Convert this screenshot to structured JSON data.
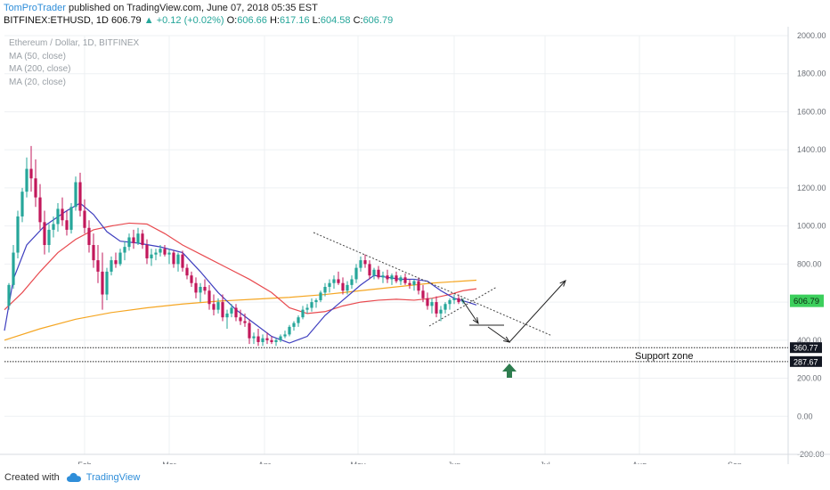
{
  "header": {
    "author": "TomProTrader",
    "published_text": "published on TradingView.com, June 07, 2018 05:35 EST",
    "symbol": "BITFINEX:ETHUSD, 1D",
    "last": "606.79",
    "change": "▲ +0.12 (+0.02%)",
    "o_label": "O:",
    "o_value": "606.66",
    "h_label": "H:",
    "h_value": "617.16",
    "l_label": "L:",
    "l_value": "604.58",
    "c_label": "C:",
    "c_value": "606.79"
  },
  "legend": {
    "title": "Ethereum / Dollar, 1D, BITFINEX",
    "ma50": "MA (50, close)",
    "ma200": "MA (200, close)",
    "ma20": "MA (20, close)"
  },
  "footer": {
    "created_with": "Created with",
    "brand": "TradingView"
  },
  "colors": {
    "up": "#26a69a",
    "down": "#c2185b",
    "ma50": "#e84a4f",
    "ma200": "#f5a623",
    "ma20": "#3f3fbf",
    "grid": "#eef0f3",
    "axis_text": "#6b6f76",
    "price_tag": "#3ccf5c",
    "arrow_green": "#2e7d4f"
  },
  "chart_data": {
    "type": "candlestick",
    "y_axis": {
      "min": -200,
      "max": 2000,
      "ticks": [
        2000,
        1800,
        1600,
        1400,
        1200,
        1000,
        800,
        600,
        400,
        200,
        0,
        -200
      ],
      "tick_labels": [
        "2000.00",
        "1800.00",
        "1600.00",
        "1400.00",
        "1200.00",
        "1000.00",
        "800.00",
        "600.00",
        "400.00",
        "200.00",
        "0.00",
        "-200.00"
      ]
    },
    "x_axis": {
      "tick_labels": [
        "Feb",
        "Mar",
        "Apr",
        "May",
        "Jun",
        "Jul",
        "Aug",
        "Sep"
      ]
    },
    "last_price": 606.79,
    "last_price_label": "606.79",
    "levels": [
      {
        "value": 360.77,
        "label": "360.77"
      },
      {
        "value": 287.67,
        "label": "287.67"
      }
    ],
    "annotations": {
      "support_zone": "Support zone"
    },
    "ma_series": {
      "ma20": [
        [
          0,
          450
        ],
        [
          10,
          720
        ],
        [
          25,
          900
        ],
        [
          45,
          1000
        ],
        [
          70,
          1080
        ],
        [
          85,
          1120
        ],
        [
          100,
          1060
        ],
        [
          115,
          970
        ],
        [
          130,
          920
        ],
        [
          150,
          910
        ],
        [
          175,
          890
        ],
        [
          200,
          860
        ],
        [
          220,
          760
        ],
        [
          240,
          650
        ],
        [
          260,
          560
        ],
        [
          280,
          490
        ],
        [
          300,
          420
        ],
        [
          320,
          385
        ],
        [
          340,
          420
        ],
        [
          360,
          530
        ],
        [
          380,
          610
        ],
        [
          400,
          690
        ],
        [
          415,
          740
        ],
        [
          430,
          730
        ],
        [
          445,
          720
        ],
        [
          460,
          720
        ],
        [
          475,
          710
        ],
        [
          490,
          660
        ],
        [
          505,
          620
        ],
        [
          520,
          600
        ],
        [
          530,
          585
        ]
      ],
      "ma50": [
        [
          0,
          560
        ],
        [
          20,
          650
        ],
        [
          40,
          760
        ],
        [
          60,
          860
        ],
        [
          80,
          930
        ],
        [
          100,
          980
        ],
        [
          120,
          1000
        ],
        [
          140,
          1015
        ],
        [
          160,
          1010
        ],
        [
          180,
          960
        ],
        [
          200,
          900
        ],
        [
          225,
          840
        ],
        [
          250,
          780
        ],
        [
          275,
          720
        ],
        [
          300,
          650
        ],
        [
          320,
          570
        ],
        [
          340,
          540
        ],
        [
          360,
          550
        ],
        [
          380,
          580
        ],
        [
          400,
          600
        ],
        [
          420,
          610
        ],
        [
          440,
          615
        ],
        [
          460,
          610
        ],
        [
          480,
          620
        ],
        [
          500,
          640
        ],
        [
          515,
          660
        ],
        [
          530,
          670
        ]
      ],
      "ma200": [
        [
          0,
          400
        ],
        [
          40,
          460
        ],
        [
          80,
          510
        ],
        [
          120,
          545
        ],
        [
          160,
          570
        ],
        [
          200,
          590
        ],
        [
          240,
          605
        ],
        [
          280,
          615
        ],
        [
          320,
          625
        ],
        [
          360,
          640
        ],
        [
          400,
          660
        ],
        [
          440,
          680
        ],
        [
          480,
          700
        ],
        [
          530,
          715
        ]
      ]
    },
    "candles": [
      [
        5,
        580,
        700,
        560,
        690
      ],
      [
        10,
        690,
        900,
        670,
        860
      ],
      [
        15,
        860,
        1080,
        830,
        1050
      ],
      [
        20,
        1050,
        1200,
        1020,
        1180
      ],
      [
        25,
        1180,
        1360,
        1150,
        1300
      ],
      [
        30,
        1300,
        1420,
        1180,
        1250
      ],
      [
        35,
        1250,
        1350,
        1100,
        1150
      ],
      [
        40,
        1150,
        1220,
        980,
        1020
      ],
      [
        45,
        1020,
        1080,
        850,
        900
      ],
      [
        50,
        900,
        1010,
        860,
        980
      ],
      [
        55,
        980,
        1050,
        940,
        1010
      ],
      [
        60,
        1010,
        1120,
        970,
        1090
      ],
      [
        65,
        1090,
        1150,
        1000,
        1030
      ],
      [
        70,
        1030,
        1080,
        950,
        980
      ],
      [
        75,
        980,
        1120,
        960,
        1100
      ],
      [
        80,
        1100,
        1260,
        1080,
        1230
      ],
      [
        85,
        1230,
        1280,
        1050,
        1080
      ],
      [
        90,
        1080,
        1140,
        960,
        990
      ],
      [
        95,
        990,
        1030,
        860,
        900
      ],
      [
        100,
        900,
        960,
        780,
        820
      ],
      [
        105,
        820,
        900,
        700,
        760
      ],
      [
        110,
        760,
        860,
        560,
        640
      ],
      [
        115,
        640,
        780,
        610,
        760
      ],
      [
        120,
        760,
        840,
        740,
        820
      ],
      [
        125,
        820,
        860,
        780,
        800
      ],
      [
        130,
        800,
        880,
        790,
        860
      ],
      [
        135,
        860,
        920,
        820,
        890
      ],
      [
        140,
        890,
        960,
        870,
        940
      ],
      [
        145,
        940,
        980,
        880,
        910
      ],
      [
        150,
        910,
        990,
        900,
        960
      ],
      [
        155,
        960,
        980,
        880,
        900
      ],
      [
        160,
        900,
        930,
        800,
        830
      ],
      [
        165,
        830,
        880,
        790,
        850
      ],
      [
        170,
        850,
        880,
        820,
        860
      ],
      [
        175,
        860,
        900,
        840,
        880
      ],
      [
        180,
        880,
        900,
        840,
        850
      ],
      [
        185,
        850,
        880,
        800,
        860
      ],
      [
        190,
        860,
        870,
        780,
        800
      ],
      [
        195,
        800,
        860,
        760,
        850
      ],
      [
        200,
        850,
        870,
        760,
        780
      ],
      [
        205,
        780,
        800,
        720,
        740
      ],
      [
        210,
        740,
        760,
        680,
        700
      ],
      [
        215,
        700,
        730,
        620,
        650
      ],
      [
        220,
        650,
        700,
        600,
        680
      ],
      [
        225,
        680,
        720,
        640,
        660
      ],
      [
        230,
        660,
        690,
        560,
        590
      ],
      [
        235,
        590,
        640,
        530,
        560
      ],
      [
        240,
        560,
        620,
        540,
        600
      ],
      [
        245,
        600,
        640,
        500,
        520
      ],
      [
        250,
        520,
        560,
        460,
        540
      ],
      [
        255,
        540,
        590,
        520,
        570
      ],
      [
        260,
        570,
        590,
        500,
        520
      ],
      [
        265,
        520,
        560,
        480,
        500
      ],
      [
        270,
        500,
        540,
        470,
        490
      ],
      [
        275,
        490,
        510,
        380,
        410
      ],
      [
        280,
        410,
        440,
        380,
        420
      ],
      [
        285,
        420,
        460,
        370,
        390
      ],
      [
        290,
        390,
        430,
        370,
        410
      ],
      [
        295,
        410,
        440,
        380,
        400
      ],
      [
        300,
        400,
        420,
        380,
        390
      ],
      [
        305,
        390,
        410,
        370,
        400
      ],
      [
        310,
        400,
        430,
        390,
        420
      ],
      [
        315,
        420,
        450,
        410,
        430
      ],
      [
        320,
        430,
        480,
        420,
        470
      ],
      [
        325,
        470,
        500,
        450,
        490
      ],
      [
        330,
        490,
        530,
        470,
        520
      ],
      [
        335,
        520,
        580,
        510,
        560
      ],
      [
        340,
        560,
        590,
        540,
        570
      ],
      [
        345,
        570,
        620,
        550,
        600
      ],
      [
        350,
        600,
        620,
        570,
        610
      ],
      [
        355,
        610,
        660,
        600,
        650
      ],
      [
        360,
        650,
        700,
        630,
        680
      ],
      [
        365,
        680,
        720,
        650,
        700
      ],
      [
        370,
        700,
        740,
        670,
        720
      ],
      [
        375,
        720,
        760,
        690,
        700
      ],
      [
        380,
        700,
        730,
        640,
        660
      ],
      [
        385,
        660,
        710,
        640,
        690
      ],
      [
        390,
        690,
        740,
        670,
        720
      ],
      [
        395,
        720,
        800,
        700,
        780
      ],
      [
        400,
        780,
        840,
        760,
        820
      ],
      [
        405,
        820,
        850,
        780,
        800
      ],
      [
        410,
        800,
        820,
        720,
        740
      ],
      [
        415,
        740,
        780,
        720,
        770
      ],
      [
        420,
        770,
        790,
        720,
        730
      ],
      [
        425,
        730,
        760,
        700,
        740
      ],
      [
        430,
        740,
        770,
        700,
        720
      ],
      [
        435,
        720,
        750,
        690,
        740
      ],
      [
        440,
        740,
        760,
        700,
        710
      ],
      [
        445,
        710,
        740,
        690,
        730
      ],
      [
        450,
        730,
        750,
        690,
        700
      ],
      [
        455,
        700,
        720,
        670,
        690
      ],
      [
        460,
        690,
        720,
        660,
        710
      ],
      [
        465,
        710,
        730,
        640,
        660
      ],
      [
        470,
        660,
        690,
        600,
        620
      ],
      [
        475,
        620,
        650,
        560,
        580
      ],
      [
        480,
        580,
        620,
        540,
        600
      ],
      [
        485,
        600,
        630,
        520,
        540
      ],
      [
        490,
        540,
        580,
        500,
        560
      ],
      [
        495,
        560,
        600,
        540,
        590
      ],
      [
        500,
        590,
        620,
        560,
        610
      ],
      [
        505,
        610,
        640,
        590,
        620
      ],
      [
        510,
        620,
        640,
        590,
        600
      ],
      [
        515,
        600,
        620,
        590,
        607
      ]
    ]
  }
}
